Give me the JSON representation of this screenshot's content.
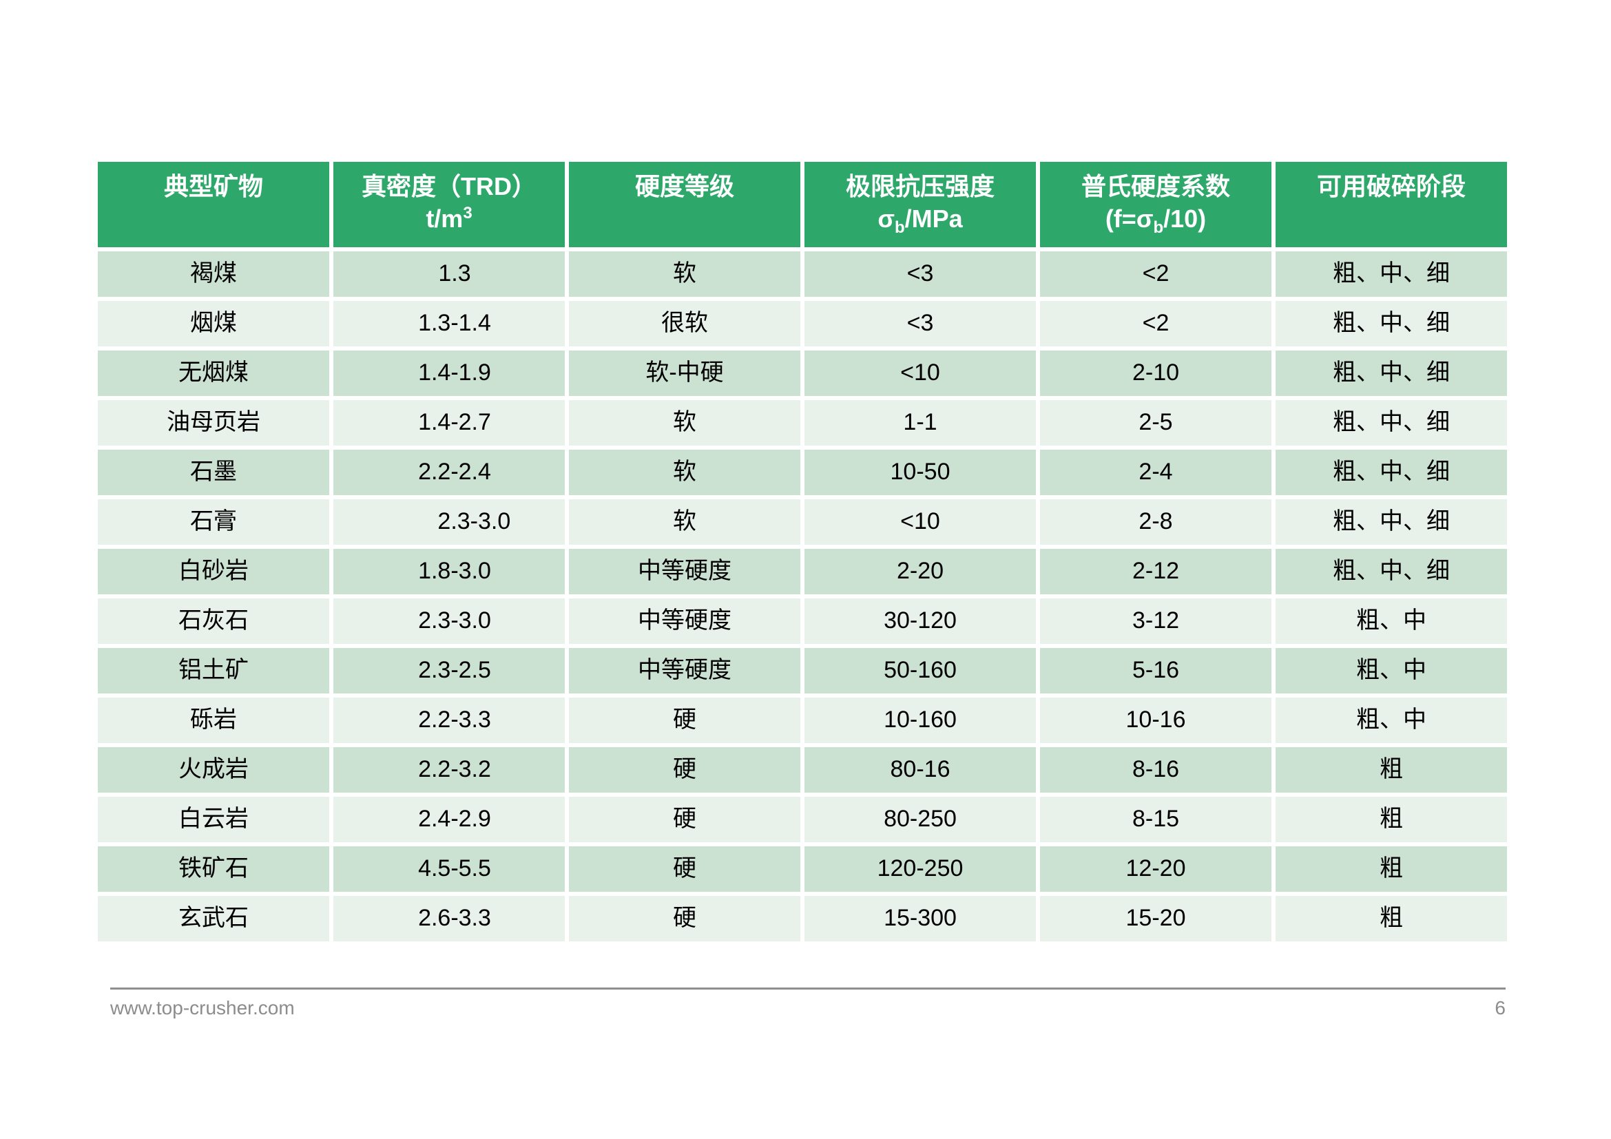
{
  "colors": {
    "header_bg": "#2ea76b",
    "row_dark": "#cbe1d2",
    "row_light": "#e9f1eb",
    "footer_gray": "#8c8c8c"
  },
  "table": {
    "columns": [
      {
        "title": "典型矿物"
      },
      {
        "title": "真密度（TRD）",
        "sub_line": {
          "pre": "t/m",
          "sup": "3",
          "post": ""
        }
      },
      {
        "title": "硬度等级"
      },
      {
        "title": "极限抗压强度",
        "sub_line": {
          "pre": "σ",
          "sub": "b",
          "post": "/MPa"
        }
      },
      {
        "title": "普氏硬度系数",
        "sub_line": {
          "pre": "(f=σ",
          "sub": "b",
          "post": "/10)"
        }
      },
      {
        "title": "可用破碎阶段"
      }
    ],
    "rows": [
      [
        "褐煤",
        "1.3",
        "软",
        "<3",
        "<2",
        "粗、中、细"
      ],
      [
        "烟煤",
        "1.3-1.4",
        "很软",
        "<3",
        "<2",
        "粗、中、细"
      ],
      [
        "无烟煤",
        "1.4-1.9",
        "软-中硬",
        "<10",
        "2-10",
        "粗、中、细"
      ],
      [
        "油母页岩",
        "1.4-2.7",
        "软",
        "1-1",
        "2-5",
        "粗、中、细"
      ],
      [
        "石墨",
        "2.2-2.4",
        "软",
        "10-50",
        "2-4",
        "粗、中、细"
      ],
      [
        "石膏",
        "      2.3-3.0",
        "软",
        "<10",
        "2-8",
        "粗、中、细"
      ],
      [
        "白砂岩",
        "1.8-3.0",
        "中等硬度",
        "2-20",
        "2-12",
        "粗、中、细"
      ],
      [
        "石灰石",
        "2.3-3.0",
        "中等硬度",
        "30-120",
        "3-12",
        "粗、中"
      ],
      [
        "铝土矿",
        "2.3-2.5",
        "中等硬度",
        "50-160",
        "5-16",
        "粗、中"
      ],
      [
        "砾岩",
        "2.2-3.3",
        "硬",
        "10-160",
        "10-16",
        "粗、中"
      ],
      [
        "火成岩",
        "2.2-3.2",
        "硬",
        "80-16",
        "8-16",
        "粗"
      ],
      [
        "白云岩",
        "2.4-2.9",
        "硬",
        "80-250",
        "8-15",
        "粗"
      ],
      [
        "铁矿石",
        "4.5-5.5",
        "硬",
        "120-250",
        "12-20",
        "粗"
      ],
      [
        "玄武石",
        "2.6-3.3",
        "硬",
        "15-300",
        "15-20",
        "粗"
      ]
    ]
  },
  "footer": {
    "url": "www.top-crusher.com",
    "page": "6"
  }
}
